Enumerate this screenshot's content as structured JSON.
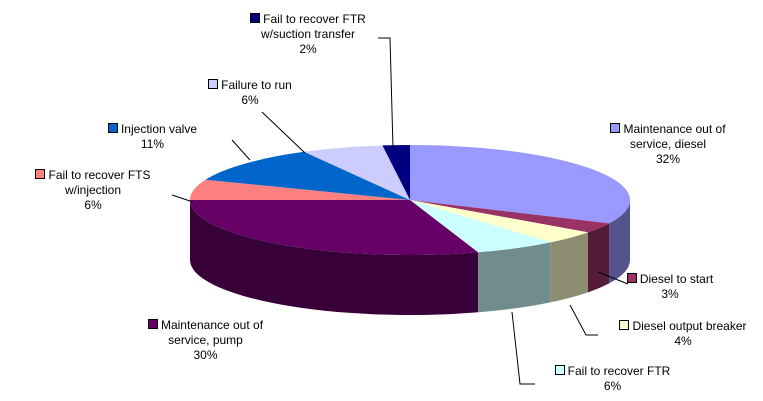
{
  "chart_data": {
    "type": "pie",
    "categories": [
      "Maintenance out of service, diesel",
      "Diesel to start",
      "Diesel output breaker",
      "Fail to recover FTR",
      "Maintenance out of service, pump",
      "Fail to recover FTS w/injection",
      "Injection valve",
      "Failure to run",
      "Fail to recover FTR w/suction transfer"
    ],
    "values": [
      32,
      3,
      4,
      6,
      30,
      6,
      11,
      6,
      2
    ],
    "value_labels": [
      "32%",
      "3%",
      "4%",
      "6%",
      "30%",
      "6%",
      "11%",
      "6%",
      "2%"
    ],
    "colors": [
      "#9999ff",
      "#993366",
      "#ffffcc",
      "#ccffff",
      "#660066",
      "#ff8080",
      "#0066cc",
      "#ccccff",
      "#000080"
    ]
  }
}
